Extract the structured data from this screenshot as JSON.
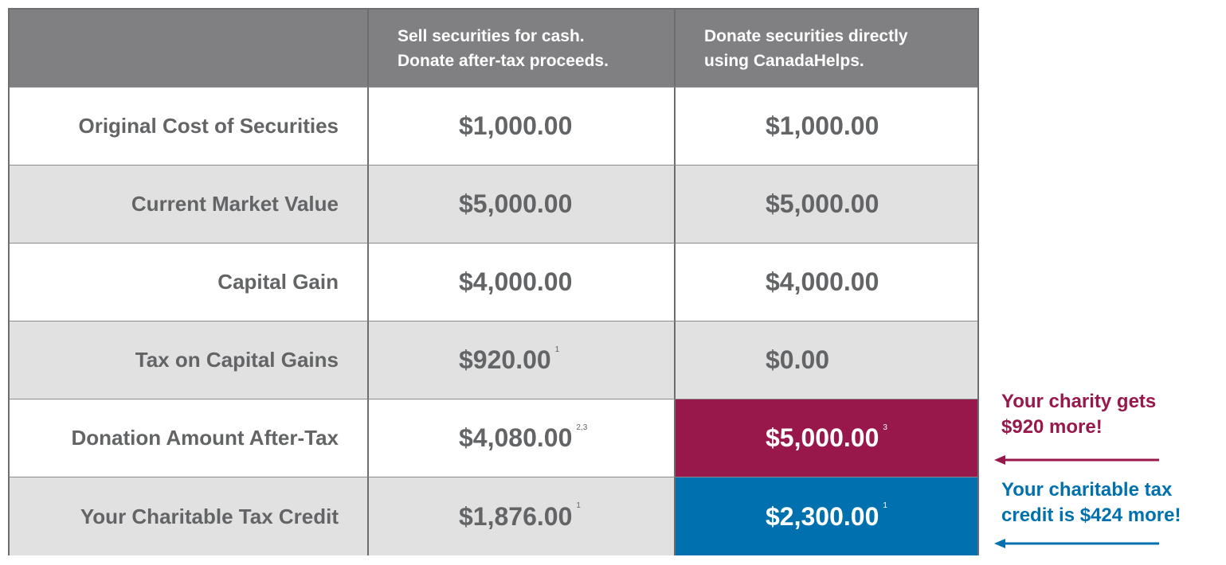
{
  "table": {
    "header": [
      [
        "Sell securities for cash.",
        "Donate after-tax proceeds."
      ],
      [
        "Donate securities directly",
        "using CanadaHelps."
      ]
    ],
    "rows": [
      {
        "label": "Original Cost of Securities",
        "cells": [
          {
            "value": "$1,000.00"
          },
          {
            "value": "$1,000.00"
          }
        ]
      },
      {
        "label": "Current Market Value",
        "cells": [
          {
            "value": "$5,000.00"
          },
          {
            "value": "$5,000.00"
          }
        ]
      },
      {
        "label": "Capital Gain",
        "cells": [
          {
            "value": "$4,000.00"
          },
          {
            "value": "$4,000.00"
          }
        ]
      },
      {
        "label": "Tax on Capital Gains",
        "cells": [
          {
            "value": "$920.00",
            "note": "1"
          },
          {
            "value": "$0.00"
          }
        ]
      },
      {
        "label": "Donation Amount After-Tax",
        "cells": [
          {
            "value": "$4,080.00",
            "note": "2,3"
          },
          {
            "value": "$5,000.00",
            "note": "3",
            "highlight": "#98184b"
          }
        ]
      },
      {
        "label": "Your Charitable Tax Credit",
        "cells": [
          {
            "value": "$1,876.00",
            "note": "1"
          },
          {
            "value": "$2,300.00",
            "note": "1",
            "highlight": "#0071ae"
          }
        ]
      }
    ]
  },
  "annotations": {
    "charity": [
      "Your charity gets",
      "$920 more!"
    ],
    "credit": [
      "Your charitable tax",
      "credit is $424 more!"
    ]
  }
}
